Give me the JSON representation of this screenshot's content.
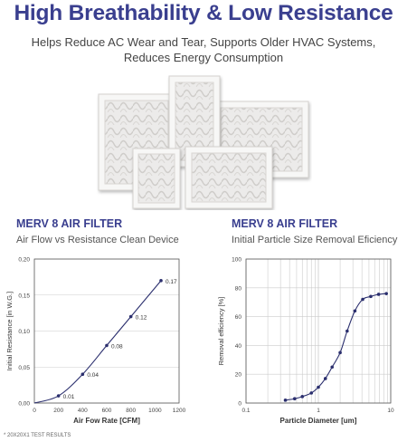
{
  "header": {
    "title": "High Breathability & Low Resistance",
    "subtitle_line1": "Helps Reduce AC Wear and Tear, Supports Older HVAC Systems,",
    "subtitle_line2": "Reduces Energy Consumption"
  },
  "colors": {
    "brand": "#3a3f8f",
    "line": "#2b2f6e",
    "grid": "#cccccc",
    "axis": "#555555"
  },
  "chart_data": [
    {
      "type": "line",
      "title": "MERV 8 AIR FILTER",
      "subtitle": "Air Flow vs Resistance Clean Device",
      "xlabel": "Air Fow Rate [CFM]",
      "ylabel": "Initial Resistance [in W.G.]",
      "xlim": [
        0,
        1200
      ],
      "ylim": [
        0,
        0.2
      ],
      "x_ticks": [
        0,
        200,
        400,
        600,
        800,
        1000,
        1200
      ],
      "x_tick_labels": [
        "0",
        "200",
        "400",
        "600",
        "800",
        "1000",
        "1200"
      ],
      "y_ticks": [
        0,
        0.05,
        0.1,
        0.15,
        0.2
      ],
      "y_tick_labels": [
        "0,00",
        "0,05",
        "0,10",
        "0,15",
        "0,20"
      ],
      "grid": "horizontal",
      "x": [
        0,
        200,
        400,
        600,
        800,
        1050
      ],
      "y": [
        0,
        0.01,
        0.04,
        0.08,
        0.12,
        0.17
      ],
      "point_labels": [
        "",
        "0.01",
        "0.04",
        "0.08",
        "0.12",
        "0.17"
      ]
    },
    {
      "type": "line",
      "title": "MERV 8 AIR FILTER",
      "subtitle": "Initial Particle Size Removal Eficiency",
      "xlabel": "Particle Diameter [um]",
      "ylabel": "Removal efficiency [%]",
      "xscale": "log",
      "xlim": [
        0.1,
        10
      ],
      "ylim": [
        0,
        100
      ],
      "x_ticks": [
        0.1,
        1,
        10
      ],
      "x_tick_labels": [
        "0.1",
        "1",
        "10"
      ],
      "y_ticks": [
        0,
        20,
        40,
        60,
        80,
        100
      ],
      "y_tick_labels": [
        "0",
        "20",
        "40",
        "60",
        "80",
        "100"
      ],
      "grid": "both",
      "x": [
        0.35,
        0.47,
        0.6,
        0.8,
        1.0,
        1.25,
        1.55,
        2.0,
        2.5,
        3.2,
        4.1,
        5.3,
        6.8,
        8.7
      ],
      "y": [
        2,
        3,
        4.5,
        7,
        11,
        17,
        25,
        35,
        50,
        64,
        72,
        74,
        75.5,
        76
      ]
    }
  ],
  "footnote": "*  20X20X1 TEST RESULTS"
}
